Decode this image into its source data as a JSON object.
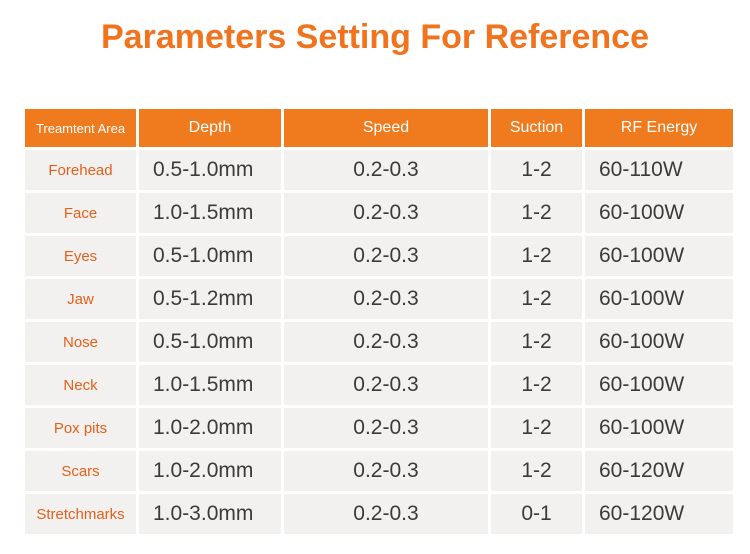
{
  "title": "Parameters Setting For Reference",
  "table": {
    "headers": {
      "area": "Treamtent Area",
      "depth": "Depth",
      "speed": "Speed",
      "suction": "Suction",
      "rf": "RF Energy"
    },
    "rows": [
      {
        "area": "Forehead",
        "depth": "0.5-1.0mm",
        "speed": "0.2-0.3",
        "suction": "1-2",
        "rf": "60-110W"
      },
      {
        "area": "Face",
        "depth": "1.0-1.5mm",
        "speed": "0.2-0.3",
        "suction": "1-2",
        "rf": "60-100W"
      },
      {
        "area": "Eyes",
        "depth": "0.5-1.0mm",
        "speed": "0.2-0.3",
        "suction": "1-2",
        "rf": "60-100W"
      },
      {
        "area": "Jaw",
        "depth": "0.5-1.2mm",
        "speed": "0.2-0.3",
        "suction": "1-2",
        "rf": "60-100W"
      },
      {
        "area": "Nose",
        "depth": "0.5-1.0mm",
        "speed": "0.2-0.3",
        "suction": "1-2",
        "rf": "60-100W"
      },
      {
        "area": "Neck",
        "depth": "1.0-1.5mm",
        "speed": "0.2-0.3",
        "suction": "1-2",
        "rf": "60-100W"
      },
      {
        "area": "Pox pits",
        "depth": "1.0-2.0mm",
        "speed": "0.2-0.3",
        "suction": "1-2",
        "rf": "60-100W"
      },
      {
        "area": "Scars",
        "depth": "1.0-2.0mm",
        "speed": "0.2-0.3",
        "suction": "1-2",
        "rf": "60-120W"
      },
      {
        "area": "Stretchmarks",
        "depth": "1.0-3.0mm",
        "speed": "0.2-0.3",
        "suction": "0-1",
        "rf": "60-120W"
      }
    ]
  },
  "colors": {
    "accent": "#f07a1e",
    "title": "#f0731e",
    "cell_bg": "#f2f1f0",
    "area_text": "#e4601a"
  }
}
